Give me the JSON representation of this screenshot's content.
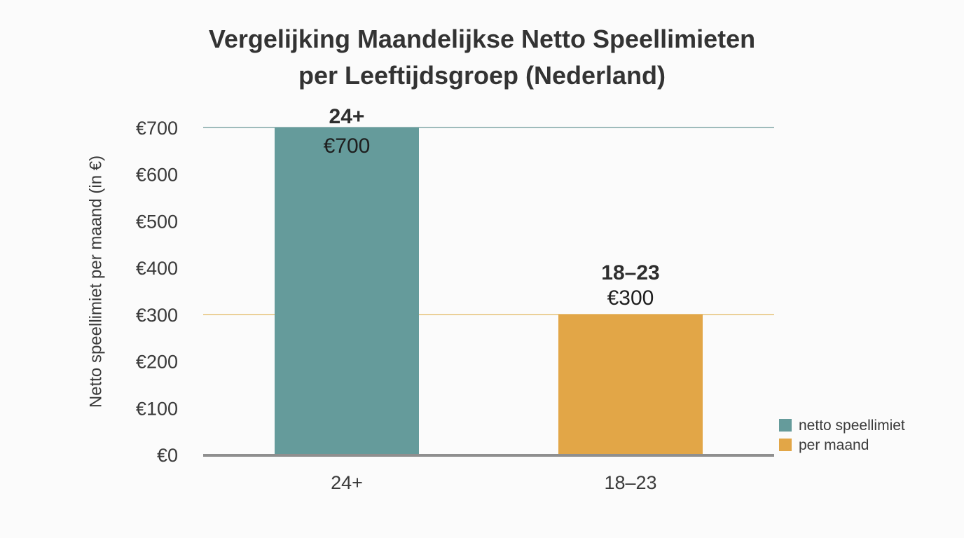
{
  "chart_data": {
    "type": "bar",
    "title_lines": [
      "Vergelijking Maandelijkse Netto Speellimieten",
      "per Leeftijdsgroep (Nederland)"
    ],
    "xlabel": "",
    "ylabel": "Netto speellimiet per maand (in €)",
    "categories": [
      "24+",
      "18–23"
    ],
    "values": [
      700,
      300
    ],
    "value_labels": [
      "€700",
      "€300"
    ],
    "bar_labels": [
      "24+",
      "18–23"
    ],
    "colors": [
      "#659b9b",
      "#e2a647"
    ],
    "ylim": [
      0,
      700
    ],
    "y_ticks": [
      0,
      100,
      200,
      300,
      400,
      500,
      600,
      700
    ],
    "y_tick_labels": [
      "€0",
      "€100",
      "€200",
      "€300",
      "€400",
      "€500",
      "€600",
      "€700"
    ],
    "reference_lines": [
      {
        "value": 700,
        "color": "#7fa6a6"
      },
      {
        "value": 300,
        "color": "#e6c27a"
      }
    ],
    "grid": false,
    "legend_position": "bottom-right",
    "legend": [
      {
        "label": "netto speellimiet",
        "color": "#659b9b"
      },
      {
        "label": "per maand",
        "color": "#e2a647"
      }
    ]
  }
}
